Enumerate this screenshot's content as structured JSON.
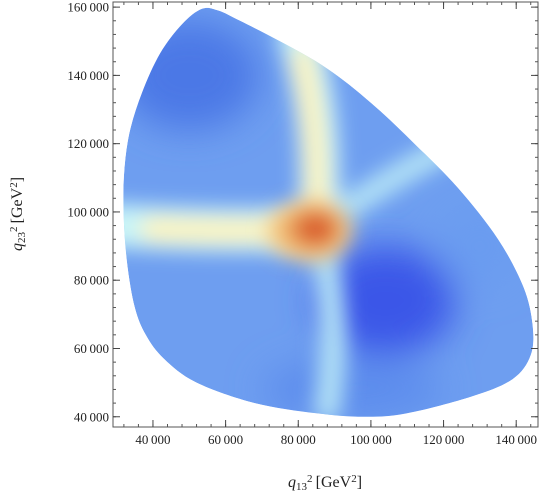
{
  "chart_data": {
    "type": "heatmap",
    "title": "",
    "xlabel": {
      "base": "q",
      "sub": "13",
      "sup": "2",
      "unit_pre": "[GeV",
      "unit_sup": "2",
      "unit_post": "]"
    },
    "ylabel": {
      "base": "q",
      "sub": "23",
      "sup": "2",
      "unit_pre": "[GeV",
      "unit_sup": "2",
      "unit_post": "]"
    },
    "xlim": [
      29000,
      146000
    ],
    "ylim": [
      37000,
      161500
    ],
    "x_ticks": [
      {
        "value": 40000,
        "label": "40 000"
      },
      {
        "value": 60000,
        "label": "60 000"
      },
      {
        "value": 80000,
        "label": "80 000"
      },
      {
        "value": 100000,
        "label": "100 000"
      },
      {
        "value": 120000,
        "label": "120 000"
      },
      {
        "value": 140000,
        "label": "140 000"
      }
    ],
    "y_ticks": [
      {
        "value": 40000,
        "label": "40 000"
      },
      {
        "value": 60000,
        "label": "60 000"
      },
      {
        "value": 80000,
        "label": "80 000"
      },
      {
        "value": 100000,
        "label": "100 000"
      },
      {
        "value": 120000,
        "label": "120 000"
      },
      {
        "value": 140000,
        "label": "140 000"
      },
      {
        "value": 160000,
        "label": "160 000"
      }
    ],
    "x_minor_step": 4000,
    "y_minor_step": 4000,
    "region_boundary": [
      [
        32000,
        110500
      ],
      [
        33500,
        123000
      ],
      [
        37000,
        135000
      ],
      [
        42000,
        146500
      ],
      [
        48000,
        155000
      ],
      [
        53500,
        159500
      ],
      [
        58000,
        159000
      ],
      [
        64000,
        156000
      ],
      [
        75000,
        150000
      ],
      [
        88000,
        142000
      ],
      [
        100000,
        132000
      ],
      [
        112000,
        120000
      ],
      [
        124000,
        107000
      ],
      [
        135000,
        92000
      ],
      [
        142000,
        78000
      ],
      [
        144500,
        67000
      ],
      [
        144000,
        58000
      ],
      [
        139000,
        51000
      ],
      [
        128000,
        46000
      ],
      [
        110000,
        41000
      ],
      [
        98000,
        40000
      ],
      [
        85000,
        41000
      ],
      [
        68000,
        44000
      ],
      [
        52000,
        50000
      ],
      [
        43000,
        57000
      ],
      [
        38000,
        64000
      ],
      [
        35000,
        72000
      ],
      [
        33000,
        84000
      ],
      [
        32000,
        97000
      ]
    ],
    "hotspot": {
      "x": 85000,
      "y": 95000
    },
    "coldspot": {
      "x": 104000,
      "y": 74000
    },
    "colormap": [
      "#3a57e8",
      "#6e9ef0",
      "#c8f4f8",
      "#fbf3c0",
      "#f3c27a",
      "#e07a3a",
      "#d9562a"
    ],
    "grid": false,
    "legend": "none"
  }
}
